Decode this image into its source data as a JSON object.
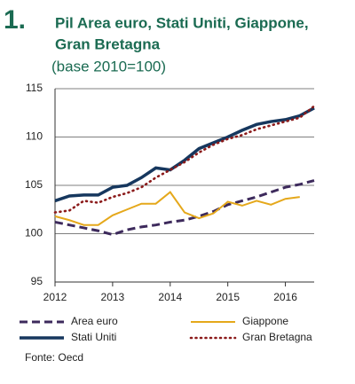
{
  "chart_data": {
    "type": "line",
    "number": "1.",
    "title_lines": [
      "Pil Area euro, Stati Uniti, Giappone,",
      "Gran Bretagna"
    ],
    "subtitle": "(base 2010=100)",
    "source": "Fonte: Oecd",
    "x": [
      2012,
      2012.25,
      2012.5,
      2012.75,
      2013,
      2013.25,
      2013.5,
      2013.75,
      2014,
      2014.25,
      2014.5,
      2014.75,
      2015,
      2015.25,
      2015.5,
      2015.75,
      2016,
      2016.25,
      2016.5
    ],
    "xlim": [
      2012,
      2016.5
    ],
    "xticks": [
      2012,
      2013,
      2014,
      2015,
      2016
    ],
    "ylim": [
      95,
      115
    ],
    "yticks": [
      95,
      100,
      105,
      110,
      115
    ],
    "grid": true,
    "series": [
      {
        "name": "Area euro",
        "color": "#3d2a5c",
        "style": "dashed",
        "values": [
          101.2,
          100.9,
          100.6,
          100.3,
          99.9,
          100.4,
          100.7,
          100.9,
          101.2,
          101.4,
          101.8,
          102.3,
          103.0,
          103.4,
          103.8,
          104.3,
          104.8,
          105.1,
          105.5
        ]
      },
      {
        "name": "Giappone",
        "color": "#e5a81b",
        "style": "solid",
        "values": [
          101.8,
          101.4,
          100.9,
          100.9,
          101.9,
          102.5,
          103.1,
          103.1,
          104.3,
          102.2,
          101.6,
          102.1,
          103.3,
          102.9,
          103.4,
          103.0,
          103.6,
          103.8,
          null
        ]
      },
      {
        "name": "Stati Uniti",
        "color": "#16375e",
        "style": "thick",
        "values": [
          103.4,
          103.9,
          104.0,
          104.0,
          104.8,
          105.0,
          105.8,
          106.8,
          106.6,
          107.6,
          108.8,
          109.4,
          110.0,
          110.7,
          111.3,
          111.6,
          111.8,
          112.2,
          113.0
        ]
      },
      {
        "name": "Gran Bretagna",
        "color": "#8b1a1a",
        "style": "dotted",
        "values": [
          102.2,
          102.4,
          103.4,
          103.2,
          103.8,
          104.2,
          104.8,
          105.8,
          106.6,
          107.4,
          108.4,
          109.2,
          109.8,
          110.2,
          110.8,
          111.2,
          111.6,
          112.0,
          113.2
        ]
      }
    ]
  }
}
